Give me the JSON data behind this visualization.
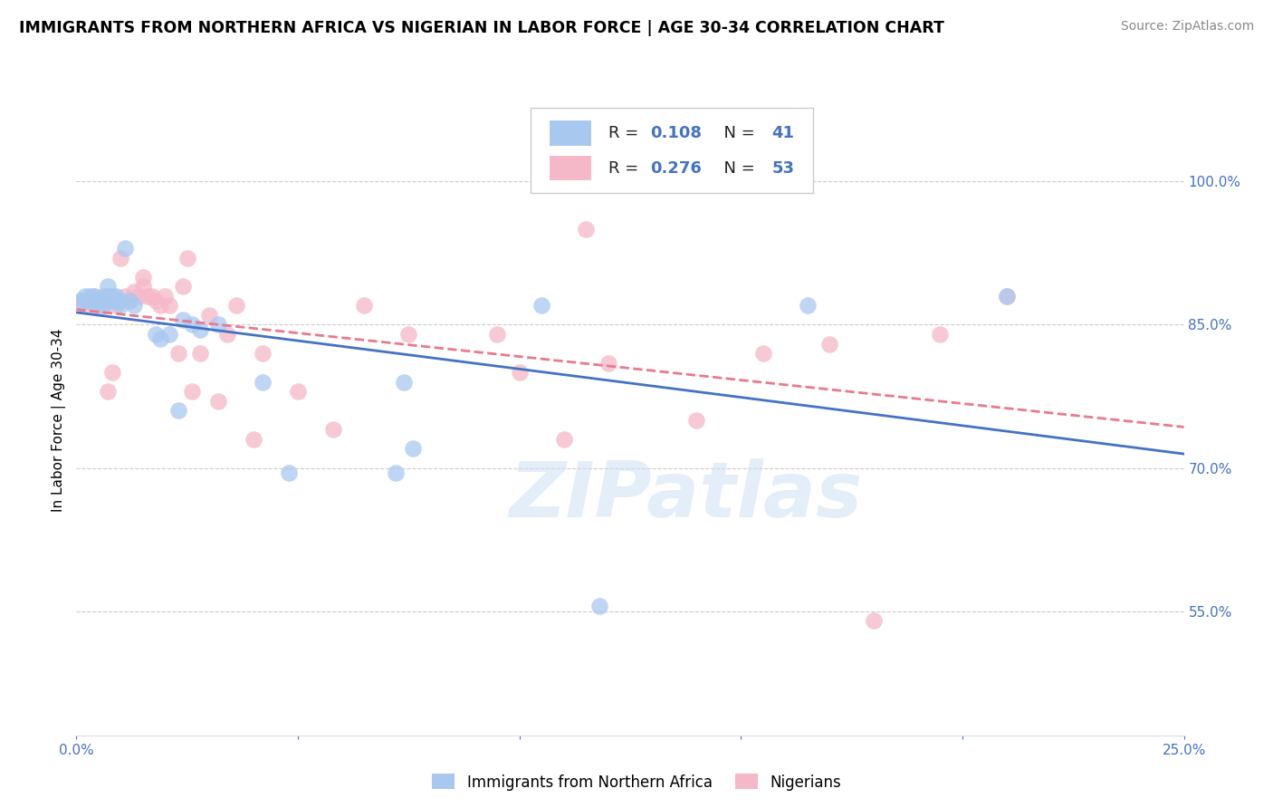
{
  "title": "IMMIGRANTS FROM NORTHERN AFRICA VS NIGERIAN IN LABOR FORCE | AGE 30-34 CORRELATION CHART",
  "source": "Source: ZipAtlas.com",
  "ylabel": "In Labor Force | Age 30-34",
  "xlim": [
    0.0,
    0.25
  ],
  "ylim": [
    0.42,
    1.08
  ],
  "xtick_positions": [
    0.0,
    0.05,
    0.1,
    0.15,
    0.2,
    0.25
  ],
  "xtick_labels": [
    "0.0%",
    "",
    "",
    "",
    "",
    "25.0%"
  ],
  "ytick_positions": [
    0.55,
    0.7,
    0.85,
    1.0
  ],
  "ytick_labels": [
    "55.0%",
    "70.0%",
    "85.0%",
    "100.0%"
  ],
  "r_blue": 0.108,
  "n_blue": 41,
  "r_pink": 0.276,
  "n_pink": 53,
  "blue_color": "#A8C8F0",
  "pink_color": "#F5B8C8",
  "line_blue": "#4472C4",
  "line_pink": "#E87A8E",
  "legend_label_blue": "Immigrants from Northern Africa",
  "legend_label_pink": "Nigerians",
  "watermark": "ZIPatlas",
  "blue_x": [
    0.001,
    0.002,
    0.002,
    0.003,
    0.003,
    0.004,
    0.004,
    0.005,
    0.005,
    0.006,
    0.006,
    0.006,
    0.007,
    0.007,
    0.007,
    0.008,
    0.008,
    0.009,
    0.009,
    0.01,
    0.01,
    0.011,
    0.012,
    0.013,
    0.018,
    0.019,
    0.021,
    0.023,
    0.024,
    0.026,
    0.028,
    0.032,
    0.042,
    0.048,
    0.072,
    0.074,
    0.076,
    0.105,
    0.118,
    0.165,
    0.21
  ],
  "blue_y": [
    0.875,
    0.88,
    0.875,
    0.88,
    0.875,
    0.88,
    0.875,
    0.875,
    0.875,
    0.88,
    0.875,
    0.87,
    0.89,
    0.88,
    0.875,
    0.88,
    0.875,
    0.88,
    0.875,
    0.875,
    0.87,
    0.93,
    0.875,
    0.87,
    0.84,
    0.835,
    0.84,
    0.76,
    0.855,
    0.85,
    0.845,
    0.85,
    0.79,
    0.695,
    0.695,
    0.79,
    0.72,
    0.87,
    0.555,
    0.87,
    0.88
  ],
  "pink_x": [
    0.001,
    0.002,
    0.002,
    0.003,
    0.004,
    0.004,
    0.005,
    0.005,
    0.006,
    0.006,
    0.007,
    0.008,
    0.008,
    0.009,
    0.01,
    0.011,
    0.012,
    0.013,
    0.014,
    0.015,
    0.015,
    0.016,
    0.017,
    0.018,
    0.019,
    0.02,
    0.021,
    0.023,
    0.024,
    0.025,
    0.026,
    0.028,
    0.03,
    0.032,
    0.034,
    0.036,
    0.04,
    0.042,
    0.05,
    0.058,
    0.065,
    0.075,
    0.095,
    0.1,
    0.11,
    0.115,
    0.12,
    0.14,
    0.155,
    0.17,
    0.18,
    0.195,
    0.21
  ],
  "pink_y": [
    0.875,
    0.87,
    0.875,
    0.875,
    0.88,
    0.87,
    0.875,
    0.87,
    0.875,
    0.87,
    0.78,
    0.875,
    0.8,
    0.87,
    0.92,
    0.88,
    0.875,
    0.885,
    0.88,
    0.9,
    0.89,
    0.88,
    0.88,
    0.875,
    0.87,
    0.88,
    0.87,
    0.82,
    0.89,
    0.92,
    0.78,
    0.82,
    0.86,
    0.77,
    0.84,
    0.87,
    0.73,
    0.82,
    0.78,
    0.74,
    0.87,
    0.84,
    0.84,
    0.8,
    0.73,
    0.95,
    0.81,
    0.75,
    0.82,
    0.83,
    0.54,
    0.84,
    0.88
  ]
}
